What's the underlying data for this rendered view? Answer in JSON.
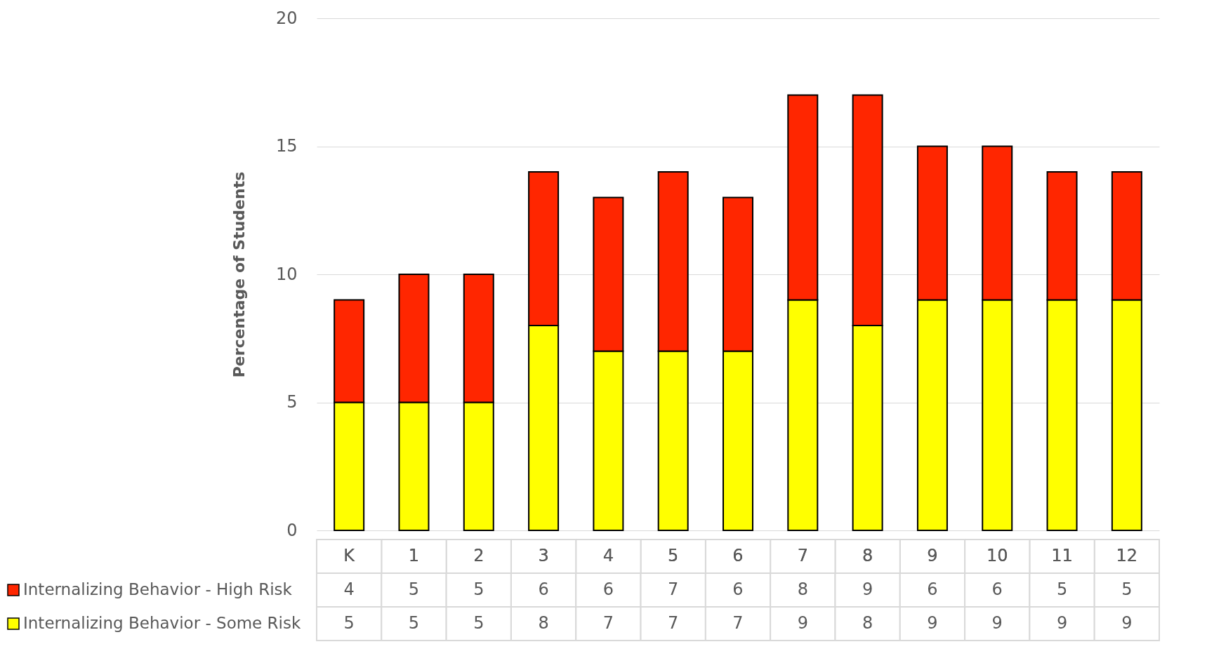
{
  "chart_data": {
    "type": "bar",
    "stacked": true,
    "ylabel": "Percentage of Students",
    "categories": [
      "K",
      "1",
      "2",
      "3",
      "4",
      "5",
      "6",
      "7",
      "8",
      "9",
      "10",
      "11",
      "12"
    ],
    "series": [
      {
        "name": "Internalizing Behavior - Some Risk",
        "color": "#ffff00",
        "values": [
          5,
          5,
          5,
          8,
          7,
          7,
          7,
          9,
          8,
          9,
          9,
          9,
          9
        ]
      },
      {
        "name": "Internalizing Behavior - High Risk",
        "color": "#ff2600",
        "values": [
          4,
          5,
          5,
          6,
          6,
          7,
          6,
          8,
          9,
          6,
          6,
          5,
          5
        ]
      }
    ],
    "ylim": [
      0,
      20
    ],
    "yticks": [
      0,
      5,
      10,
      15,
      20
    ],
    "grid": "y",
    "data_labels": true,
    "legend": "bottom left"
  }
}
